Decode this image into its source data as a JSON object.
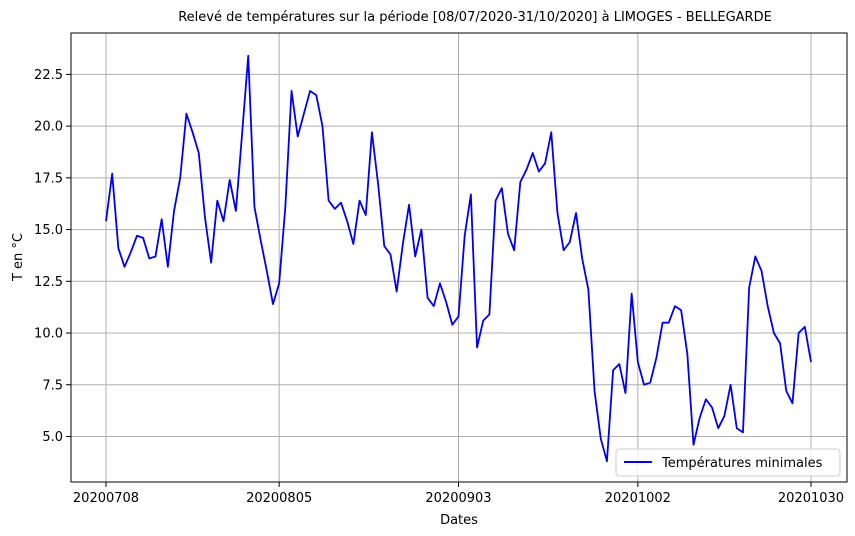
{
  "chart_data": {
    "type": "line",
    "title": "Relevé de températures sur la période [08/07/2020-31/10/2020] à LIMOGES - BELLEGARDE",
    "xlabel": "Dates",
    "ylabel": "T en °C",
    "x_tick_labels": [
      "20200708",
      "20200805",
      "20200903",
      "20201002",
      "20201030"
    ],
    "y_tick_labels": [
      "5.0",
      "7.5",
      "10.0",
      "12.5",
      "15.0",
      "17.5",
      "20.0",
      "22.5"
    ],
    "ylim": [
      2.8,
      24.5
    ],
    "grid": true,
    "legend_position": "lower-right",
    "series": [
      {
        "name": "Températures minimales",
        "color": "#0000ee",
        "x": [
          "20200708",
          "20200709",
          "20200710",
          "20200711",
          "20200712",
          "20200713",
          "20200714",
          "20200715",
          "20200716",
          "20200717",
          "20200718",
          "20200719",
          "20200720",
          "20200721",
          "20200722",
          "20200723",
          "20200724",
          "20200725",
          "20200726",
          "20200727",
          "20200728",
          "20200729",
          "20200730",
          "20200731",
          "20200801",
          "20200802",
          "20200803",
          "20200804",
          "20200805",
          "20200806",
          "20200807",
          "20200808",
          "20200809",
          "20200810",
          "20200811",
          "20200812",
          "20200813",
          "20200814",
          "20200815",
          "20200816",
          "20200817",
          "20200818",
          "20200819",
          "20200820",
          "20200821",
          "20200822",
          "20200823",
          "20200824",
          "20200825",
          "20200826",
          "20200827",
          "20200828",
          "20200829",
          "20200830",
          "20200831",
          "20200901",
          "20200902",
          "20200903",
          "20200904",
          "20200905",
          "20200906",
          "20200907",
          "20200908",
          "20200909",
          "20200910",
          "20200911",
          "20200912",
          "20200913",
          "20200914",
          "20200915",
          "20200916",
          "20200917",
          "20200918",
          "20200919",
          "20200920",
          "20200921",
          "20200922",
          "20200923",
          "20200924",
          "20200925",
          "20200926",
          "20200927",
          "20200928",
          "20200929",
          "20200930",
          "20201001",
          "20201002",
          "20201003",
          "20201004",
          "20201005",
          "20201006",
          "20201007",
          "20201008",
          "20201009",
          "20201010",
          "20201011",
          "20201012",
          "20201013",
          "20201014",
          "20201015",
          "20201016",
          "20201017",
          "20201018",
          "20201019",
          "20201020",
          "20201021",
          "20201022",
          "20201023",
          "20201024",
          "20201025",
          "20201026",
          "20201027",
          "20201028",
          "20201029",
          "20201030"
        ],
        "y": [
          15.4,
          17.7,
          14.1,
          13.2,
          13.9,
          14.7,
          14.6,
          13.6,
          13.7,
          15.5,
          13.2,
          15.9,
          17.5,
          20.6,
          19.7,
          18.7,
          15.6,
          13.4,
          16.4,
          15.4,
          17.4,
          15.9,
          19.6,
          23.4,
          16.1,
          14.5,
          13.0,
          11.4,
          12.4,
          16.1,
          21.7,
          19.5,
          20.6,
          21.7,
          21.5,
          20.0,
          16.4,
          16.0,
          16.3,
          15.4,
          14.3,
          16.4,
          15.7,
          19.7,
          17.2,
          14.2,
          13.8,
          12.0,
          14.3,
          16.2,
          13.7,
          15.0,
          11.7,
          11.3,
          12.4,
          11.5,
          10.4,
          10.8,
          14.7,
          16.7,
          9.3,
          10.6,
          10.9,
          16.4,
          17.0,
          14.8,
          14.0,
          17.3,
          17.9,
          18.7,
          17.8,
          18.2,
          19.7,
          15.8,
          14.0,
          14.4,
          15.8,
          13.6,
          12.1,
          7.2,
          4.9,
          3.8,
          8.2,
          8.5,
          7.1,
          11.9,
          8.6,
          7.5,
          7.6,
          8.8,
          10.5,
          10.5,
          11.3,
          11.1,
          9.0,
          4.6,
          5.9,
          6.8,
          6.4,
          5.4,
          6.0,
          7.5,
          5.4,
          5.2,
          12.2,
          13.7,
          13.0,
          11.3,
          10.0,
          9.5,
          7.2,
          6.6,
          10.0,
          10.3,
          8.6
        ]
      }
    ]
  }
}
